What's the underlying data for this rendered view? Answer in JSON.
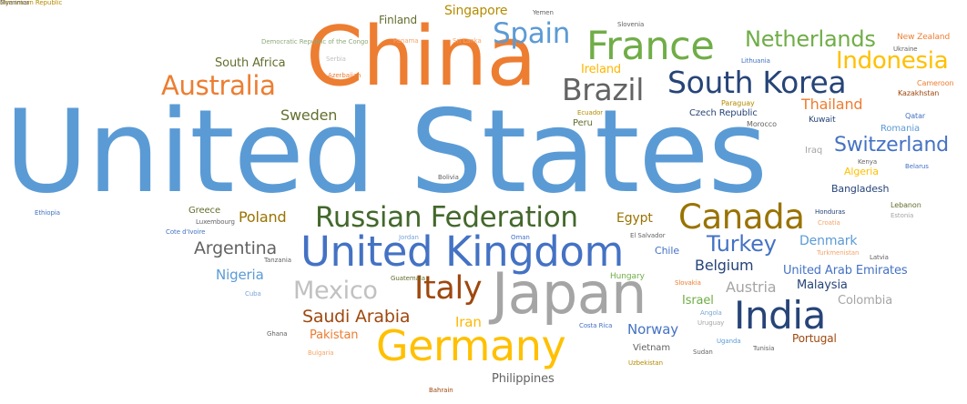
{
  "chart_data": {
    "type": "wordcloud",
    "palette": {
      "blue": "#5b9bd5",
      "orange": "#ed7d31",
      "gray": "#a5a5a5",
      "yellow": "#ffc000",
      "navy": "#264478",
      "green": "#70ad47",
      "royal": "#4472c4",
      "brown": "#9e480e",
      "olive": "#636f2e",
      "darkgray": "#636363",
      "gold": "#997300",
      "mustard": "#b58c00",
      "darkgreen": "#43682b",
      "light": "#c1c1c1",
      "amber": "#ffb700",
      "salmon": "#f4a46a",
      "lightblue": "#7aa6d6",
      "sage": "#8faa7b"
    },
    "words": [
      {
        "text": "United States",
        "weight": 100,
        "color": "blue"
      },
      {
        "text": "China",
        "weight": 58,
        "color": "orange"
      },
      {
        "text": "Japan",
        "weight": 42,
        "color": "gray"
      },
      {
        "text": "Germany",
        "weight": 38,
        "color": "yellow"
      },
      {
        "text": "United Kingdom",
        "weight": 33,
        "color": "royal"
      },
      {
        "text": "France",
        "weight": 30,
        "color": "green"
      },
      {
        "text": "India",
        "weight": 30,
        "color": "navy"
      },
      {
        "text": "Canada",
        "weight": 27,
        "color": "gold"
      },
      {
        "text": "Italy",
        "weight": 27,
        "color": "brown"
      },
      {
        "text": "Brazil",
        "weight": 25,
        "color": "darkgray"
      },
      {
        "text": "South Korea",
        "weight": 25,
        "color": "navy"
      },
      {
        "text": "Russian Federation",
        "weight": 24,
        "color": "darkgreen"
      },
      {
        "text": "Australia",
        "weight": 22,
        "color": "orange"
      },
      {
        "text": "Spain",
        "weight": 22,
        "color": "blue"
      },
      {
        "text": "Mexico",
        "weight": 20,
        "color": "light"
      },
      {
        "text": "Netherlands",
        "weight": 18,
        "color": "green"
      },
      {
        "text": "Indonesia",
        "weight": 18,
        "color": "yellow"
      },
      {
        "text": "Turkey",
        "weight": 18,
        "color": "royal"
      },
      {
        "text": "Switzerland",
        "weight": 16,
        "color": "royal"
      },
      {
        "text": "Saudi Arabia",
        "weight": 15,
        "color": "brown"
      },
      {
        "text": "Argentina",
        "weight": 14,
        "color": "darkgray"
      },
      {
        "text": "Sweden",
        "weight": 13,
        "color": "olive"
      },
      {
        "text": "Poland",
        "weight": 13,
        "color": "gold"
      },
      {
        "text": "Belgium",
        "weight": 13,
        "color": "navy"
      },
      {
        "text": "Singapore",
        "weight": 12,
        "color": "mustard"
      },
      {
        "text": "Nigeria",
        "weight": 12,
        "color": "blue"
      },
      {
        "text": "Austria",
        "weight": 12,
        "color": "gray"
      },
      {
        "text": "Iran",
        "weight": 12,
        "color": "amber"
      },
      {
        "text": "Norway",
        "weight": 12,
        "color": "royal"
      },
      {
        "text": "Thailand",
        "weight": 12,
        "color": "orange"
      },
      {
        "text": "Egypt",
        "weight": 11,
        "color": "gold"
      },
      {
        "text": "Denmark",
        "weight": 11,
        "color": "blue"
      },
      {
        "text": "South Africa",
        "weight": 11,
        "color": "olive"
      },
      {
        "text": "United Arab Emirates",
        "weight": 11,
        "color": "royal"
      },
      {
        "text": "Malaysia",
        "weight": 11,
        "color": "navy"
      },
      {
        "text": "Colombia",
        "weight": 11,
        "color": "gray"
      },
      {
        "text": "Israel",
        "weight": 11,
        "color": "green"
      },
      {
        "text": "Portugal",
        "weight": 10,
        "color": "brown"
      },
      {
        "text": "Pakistan",
        "weight": 10,
        "color": "orange"
      },
      {
        "text": "Philippines",
        "weight": 10,
        "color": "darkgray"
      },
      {
        "text": "Ireland",
        "weight": 10,
        "color": "amber"
      },
      {
        "text": "Finland",
        "weight": 9,
        "color": "olive"
      },
      {
        "text": "Chile",
        "weight": 9,
        "color": "royal"
      },
      {
        "text": "Greece",
        "weight": 8,
        "color": "olive"
      },
      {
        "text": "Vietnam",
        "weight": 8,
        "color": "darkgray"
      },
      {
        "text": "Bangladesh",
        "weight": 8,
        "color": "navy"
      },
      {
        "text": "Czech Republic",
        "weight": 7,
        "color": "navy"
      },
      {
        "text": "Peru",
        "weight": 7,
        "color": "olive"
      },
      {
        "text": "Algeria",
        "weight": 7,
        "color": "yellow"
      },
      {
        "text": "Iraq",
        "weight": 7,
        "color": "gray"
      },
      {
        "text": "Romania",
        "weight": 7,
        "color": "blue"
      },
      {
        "text": "New Zealand",
        "weight": 7,
        "color": "orange"
      },
      {
        "text": "Kuwait",
        "weight": 6,
        "color": "navy"
      },
      {
        "text": "Hungary",
        "weight": 6,
        "color": "green"
      },
      {
        "text": "Qatar",
        "weight": 6,
        "color": "royal"
      },
      {
        "text": "Kazakhstan",
        "weight": 6,
        "color": "brown"
      },
      {
        "text": "Cameroon",
        "weight": 5,
        "color": "orange"
      },
      {
        "text": "Paraguay",
        "weight": 5,
        "color": "mustard"
      },
      {
        "text": "Morocco",
        "weight": 5,
        "color": "darkgray"
      },
      {
        "text": "Ecuador",
        "weight": 5,
        "color": "mustard"
      },
      {
        "text": "Lithuania",
        "weight": 5,
        "color": "royal"
      },
      {
        "text": "Ukraine",
        "weight": 5,
        "color": "darkgray"
      },
      {
        "text": "Kenya",
        "weight": 5,
        "color": "darkgray"
      },
      {
        "text": "Belarus",
        "weight": 5,
        "color": "royal"
      },
      {
        "text": "Honduras",
        "weight": 5,
        "color": "navy"
      },
      {
        "text": "Lebanon",
        "weight": 5,
        "color": "olive"
      },
      {
        "text": "Estonia",
        "weight": 5,
        "color": "gray"
      },
      {
        "text": "Croatia",
        "weight": 5,
        "color": "salmon"
      },
      {
        "text": "Latvia",
        "weight": 5,
        "color": "darkgray"
      },
      {
        "text": "Turkmenistan",
        "weight": 5,
        "color": "salmon"
      },
      {
        "text": "Slovakia",
        "weight": 5,
        "color": "orange"
      },
      {
        "text": "Angola",
        "weight": 5,
        "color": "lightblue"
      },
      {
        "text": "Uruguay",
        "weight": 5,
        "color": "gray"
      },
      {
        "text": "Costa Rica",
        "weight": 5,
        "color": "royal"
      },
      {
        "text": "Uganda",
        "weight": 5,
        "color": "blue"
      },
      {
        "text": "Sudan",
        "weight": 5,
        "color": "darkgray"
      },
      {
        "text": "Tunisia",
        "weight": 5,
        "color": "darkgray"
      },
      {
        "text": "Uzbekistan",
        "weight": 5,
        "color": "mustard"
      },
      {
        "text": "El Salvador",
        "weight": 5,
        "color": "darkgray"
      },
      {
        "text": "Oman",
        "weight": 5,
        "color": "royal"
      },
      {
        "text": "Jordan",
        "weight": 5,
        "color": "lightblue"
      },
      {
        "text": "Guatemala",
        "weight": 5,
        "color": "olive"
      },
      {
        "text": "Tanzania",
        "weight": 5,
        "color": "darkgray"
      },
      {
        "text": "Cuba",
        "weight": 5,
        "color": "lightblue"
      },
      {
        "text": "Ghana",
        "weight": 5,
        "color": "darkgray"
      },
      {
        "text": "Bulgaria",
        "weight": 5,
        "color": "salmon"
      },
      {
        "text": "Bahrain",
        "weight": 5,
        "color": "brown"
      },
      {
        "text": "Luxembourg",
        "weight": 5,
        "color": "darkgray"
      },
      {
        "text": "Cote d'Ivoire",
        "weight": 5,
        "color": "royal"
      },
      {
        "text": "Ethiopia",
        "weight": 5,
        "color": "royal"
      },
      {
        "text": "Bolivia",
        "weight": 5,
        "color": "darkgray"
      },
      {
        "text": "Democratic Republic of the Congo",
        "weight": 5,
        "color": "sage"
      },
      {
        "text": "Serbia",
        "weight": 5,
        "color": "light"
      },
      {
        "text": "Azerbaijan",
        "weight": 5,
        "color": "orange"
      },
      {
        "text": "Panama",
        "weight": 5,
        "color": "salmon"
      },
      {
        "text": "Sri Lanka",
        "weight": 5,
        "color": "salmon"
      },
      {
        "text": "Yemen",
        "weight": 5,
        "color": "darkgray"
      },
      {
        "text": "Slovenia",
        "weight": 5,
        "color": "darkgray"
      },
      {
        "text": "Dominican Republic",
        "weight": 5,
        "color": "mustard"
      },
      {
        "text": "Myanmar",
        "weight": 5,
        "color": "darkgray"
      }
    ]
  }
}
